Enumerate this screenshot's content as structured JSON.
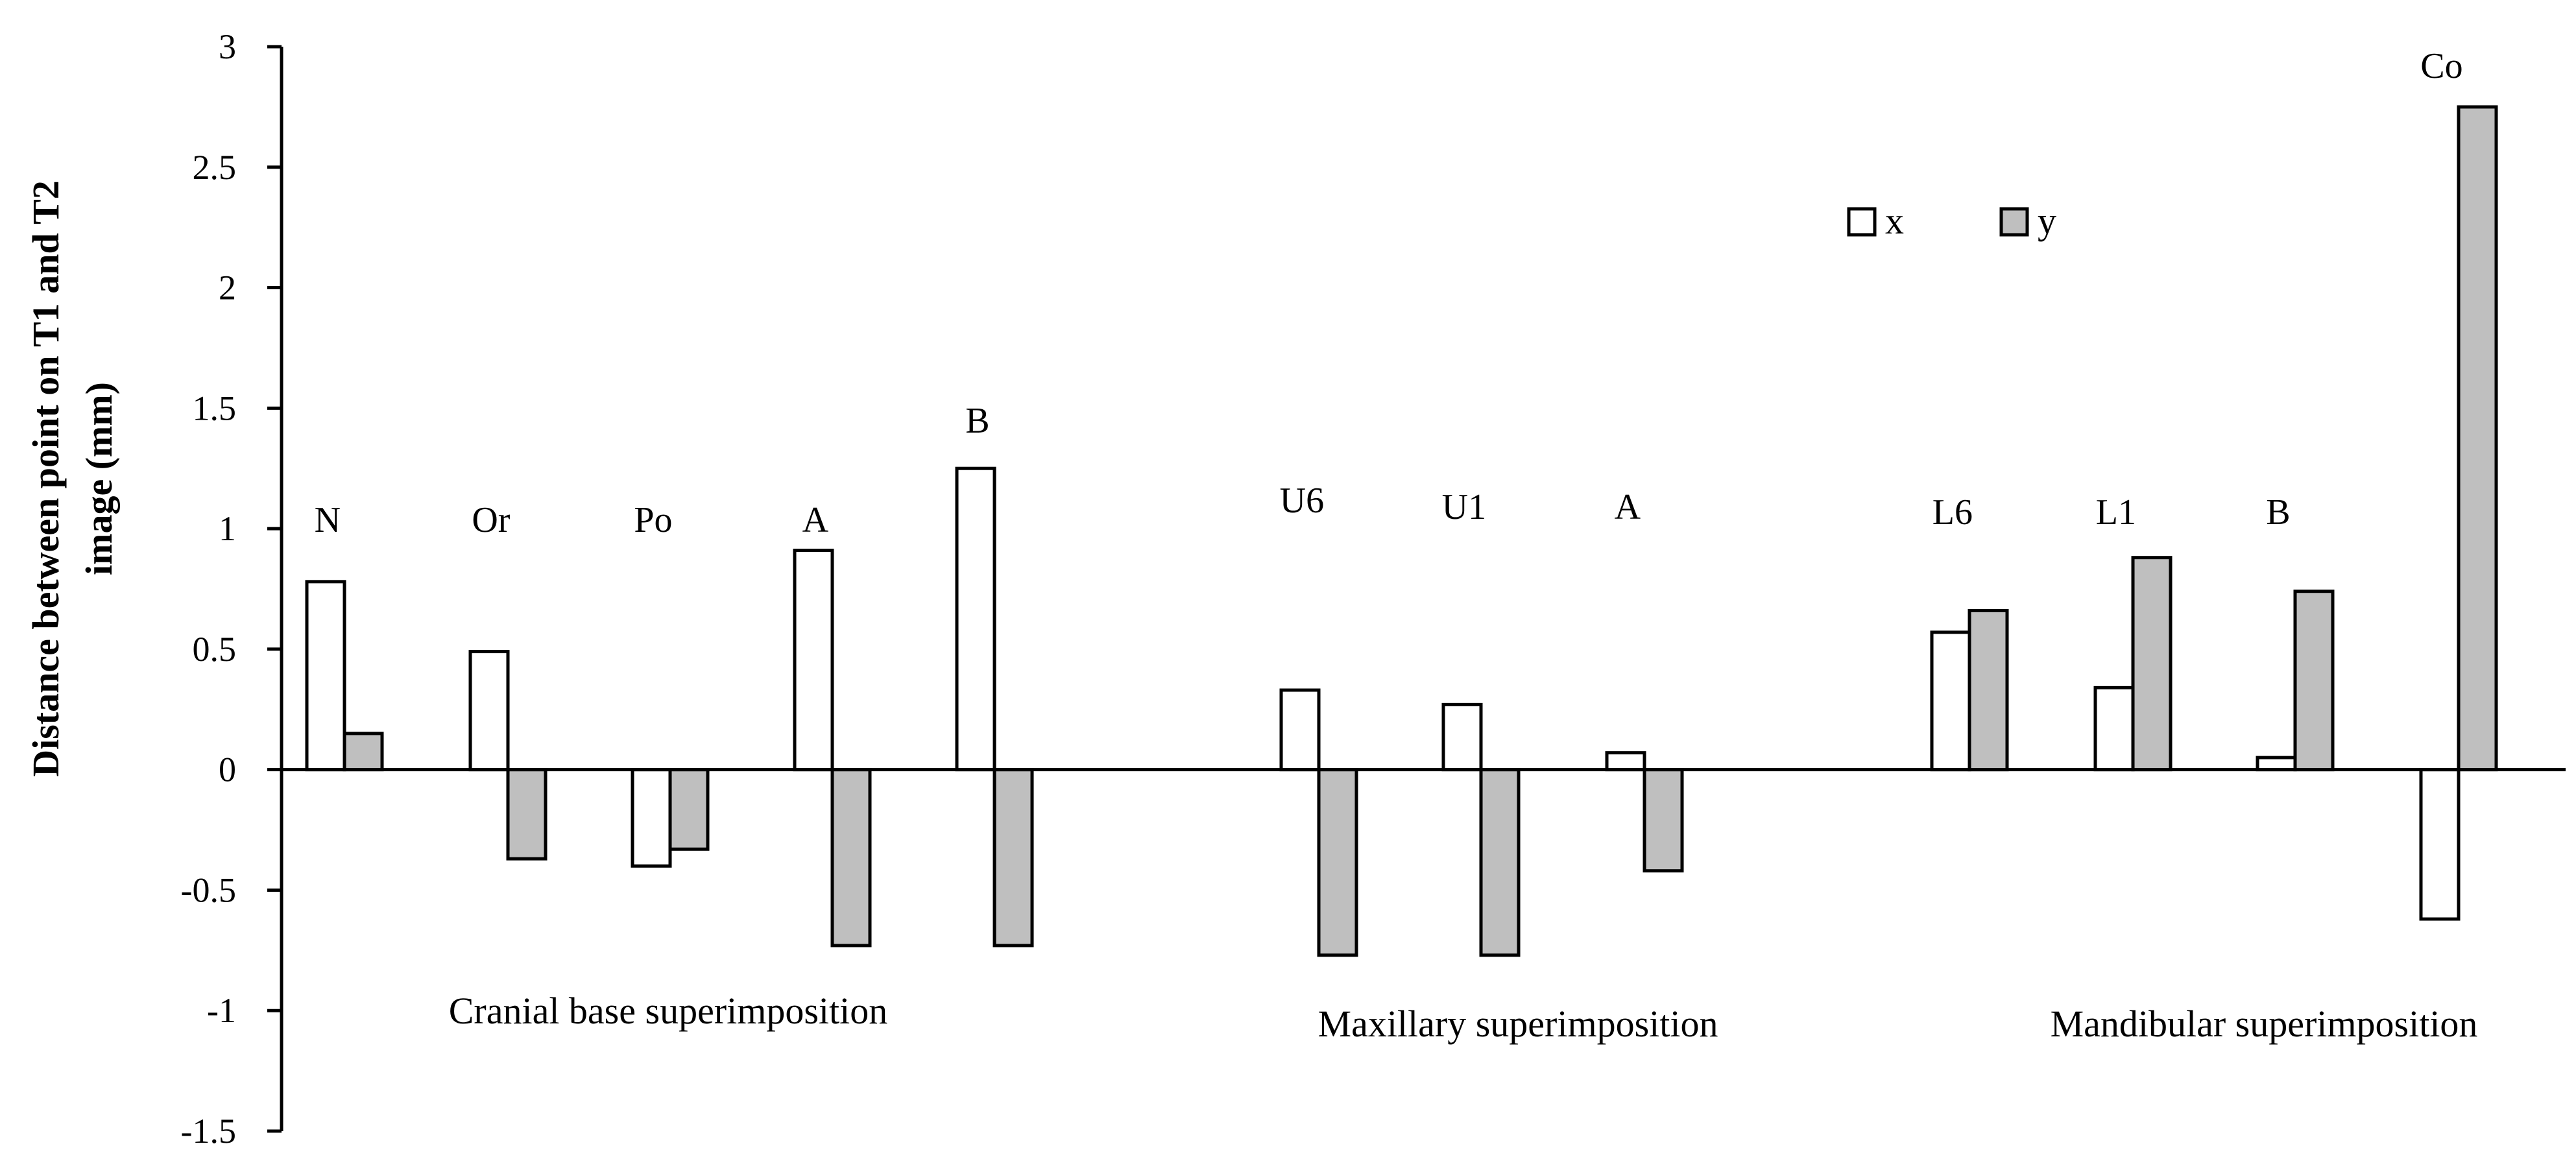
{
  "chart_data": {
    "type": "bar",
    "ylabel_lines": [
      "Distance between point on T1 and T2",
      "image (mm)"
    ],
    "ylim": [
      -1.5,
      3
    ],
    "yticks": [
      {
        "v": 3,
        "label": "3"
      },
      {
        "v": 2.5,
        "label": "2.5"
      },
      {
        "v": 2,
        "label": "2"
      },
      {
        "v": 1.5,
        "label": "1.5"
      },
      {
        "v": 1,
        "label": "1"
      },
      {
        "v": 0.5,
        "label": "0.5"
      },
      {
        "v": 0,
        "label": "0"
      },
      {
        "v": -0.5,
        "label": "-0.5"
      },
      {
        "v": -1,
        "label": "-1"
      },
      {
        "v": -1.5,
        "label": "-1.5"
      }
    ],
    "grid": false,
    "legend_position": "top-right",
    "series": [
      {
        "name": "x",
        "color": "#ffffff"
      },
      {
        "name": "y",
        "color": "#bfbfbf"
      }
    ],
    "groups": [
      {
        "label": "Cranial base superimposition",
        "points": [
          {
            "name": "N",
            "x": 0.78,
            "y": 0.15
          },
          {
            "name": "Or",
            "x": 0.49,
            "y": -0.37
          },
          {
            "name": "Po",
            "x": -0.4,
            "y": -0.33
          },
          {
            "name": "A",
            "x": 0.91,
            "y": -0.73
          },
          {
            "name": "B",
            "x": 1.25,
            "y": -0.73
          }
        ]
      },
      {
        "label": "Maxillary superimposition",
        "points": [
          {
            "name": "U6",
            "x": 0.33,
            "y": -0.77
          },
          {
            "name": "U1",
            "x": 0.27,
            "y": -0.77
          },
          {
            "name": "A",
            "x": 0.07,
            "y": -0.42
          }
        ]
      },
      {
        "label": "Mandibular superimposition",
        "points": [
          {
            "name": "L6",
            "x": 0.57,
            "y": 0.66
          },
          {
            "name": "L1",
            "x": 0.34,
            "y": 0.88
          },
          {
            "name": "B",
            "x": 0.05,
            "y": 0.74
          },
          {
            "name": "Co",
            "x": -0.62,
            "y": 2.75
          }
        ]
      }
    ]
  }
}
